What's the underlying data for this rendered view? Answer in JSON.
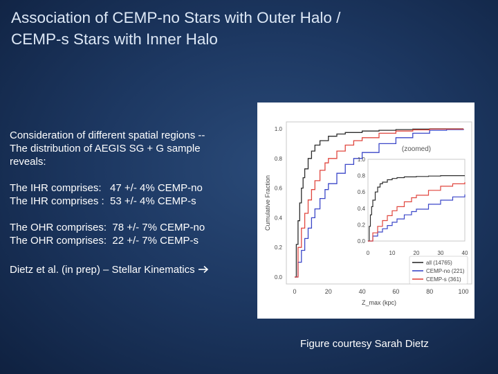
{
  "slide": {
    "title_lines": [
      "Association of CEMP-no Stars with Outer Halo /",
      "CEMP-s Stars with Inner Halo"
    ],
    "intro_lines": [
      "Consideration of different spatial regions --",
      "The distribution of AEGIS SG + G sample",
      "reveals:"
    ],
    "ihr_lines": [
      "The IHR comprises:   47 +/- 4% CEMP-no",
      "The IHR comprises :  53 +/- 4% CEMP-s"
    ],
    "ohr_lines": [
      "The OHR comprises:  78 +/- 7% CEMP-no",
      "The OHR comprises:  22 +/- 7% CEMP-s"
    ],
    "reference": "Dietz et al. (in prep) – Stellar Kinematics",
    "reference_icon": "arrow-right-icon",
    "credit": "Figure courtesy Sarah Dietz"
  },
  "chart_data": [
    {
      "type": "line",
      "title": "",
      "xlabel": "Z_max (kpc)",
      "ylabel": "Cumulative Fraction",
      "xlim": [
        0,
        100
      ],
      "ylim": [
        0,
        1.0
      ],
      "xticks": [
        "0",
        "20",
        "40",
        "60",
        "80",
        "100"
      ],
      "yticks": [
        "0.0",
        "0.2",
        "0.4",
        "0.6",
        "0.8",
        "1.0"
      ],
      "legend_position": "bottom-right",
      "series": [
        {
          "name": "all (14765)",
          "color": "#2b2b2b",
          "x": [
            0,
            1,
            2,
            3,
            4,
            5,
            6,
            8,
            10,
            12,
            15,
            20,
            25,
            30,
            40,
            50,
            60,
            70,
            80,
            100
          ],
          "y": [
            0,
            0.22,
            0.38,
            0.5,
            0.6,
            0.67,
            0.73,
            0.8,
            0.85,
            0.89,
            0.92,
            0.95,
            0.965,
            0.975,
            0.985,
            0.99,
            0.995,
            0.998,
            1.0,
            1.0
          ]
        },
        {
          "name": "CEMP-no (221)",
          "color": "#3a46c8",
          "x": [
            0,
            2,
            4,
            6,
            8,
            10,
            12,
            15,
            18,
            20,
            25,
            30,
            35,
            40,
            50,
            60,
            70,
            80,
            90,
            100
          ],
          "y": [
            0,
            0.1,
            0.18,
            0.26,
            0.33,
            0.4,
            0.46,
            0.53,
            0.59,
            0.63,
            0.7,
            0.76,
            0.8,
            0.84,
            0.9,
            0.94,
            0.97,
            0.99,
            0.995,
            1.0
          ]
        },
        {
          "name": "CEMP-s (361)",
          "color": "#e0453d",
          "x": [
            0,
            2,
            4,
            6,
            8,
            10,
            12,
            15,
            18,
            20,
            25,
            30,
            35,
            40,
            50,
            60,
            70,
            80,
            100
          ],
          "y": [
            0,
            0.2,
            0.33,
            0.43,
            0.52,
            0.59,
            0.65,
            0.72,
            0.77,
            0.8,
            0.85,
            0.89,
            0.92,
            0.94,
            0.97,
            0.985,
            0.993,
            0.998,
            1.0
          ]
        }
      ]
    },
    {
      "type": "line",
      "title": "(zoomed)",
      "xlabel": "",
      "ylabel": "",
      "xlim": [
        0,
        40
      ],
      "ylim": [
        0,
        1.0
      ],
      "xticks": [
        "0",
        "10",
        "20",
        "30",
        "40"
      ],
      "yticks": [
        "0.0",
        "0.2",
        "0.4",
        "0.6",
        "0.8",
        "1.0"
      ],
      "series": [
        {
          "name": "all (14765)",
          "color": "#2b2b2b",
          "x": [
            0,
            0.5,
            1,
            1.5,
            2,
            3,
            4,
            5,
            6,
            8,
            10,
            12,
            15,
            20,
            25,
            30,
            35,
            40
          ],
          "y": [
            0,
            0.18,
            0.32,
            0.42,
            0.5,
            0.6,
            0.66,
            0.7,
            0.72,
            0.75,
            0.765,
            0.775,
            0.785,
            0.79,
            0.795,
            0.8,
            0.8,
            0.8
          ]
        },
        {
          "name": "CEMP-no (221)",
          "color": "#3a46c8",
          "x": [
            0,
            2,
            4,
            6,
            8,
            10,
            12,
            15,
            18,
            20,
            25,
            30,
            35,
            40
          ],
          "y": [
            0,
            0.06,
            0.11,
            0.15,
            0.19,
            0.23,
            0.27,
            0.32,
            0.36,
            0.39,
            0.45,
            0.5,
            0.54,
            0.57
          ]
        },
        {
          "name": "CEMP-s (361)",
          "color": "#e0453d",
          "x": [
            0,
            2,
            4,
            6,
            8,
            10,
            12,
            15,
            18,
            20,
            25,
            30,
            35,
            40
          ],
          "y": [
            0,
            0.1,
            0.18,
            0.25,
            0.31,
            0.37,
            0.42,
            0.48,
            0.53,
            0.56,
            0.62,
            0.67,
            0.7,
            0.72
          ]
        }
      ]
    }
  ]
}
